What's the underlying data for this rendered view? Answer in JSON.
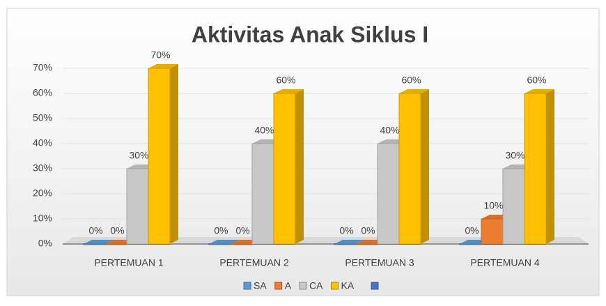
{
  "chart_data": {
    "type": "bar3d",
    "title": "Aktivitas Anak Siklus I",
    "categories": [
      "PERTEMUAN 1",
      "PERTEMUAN 2",
      "PERTEMUAN 3",
      "PERTEMUAN 4"
    ],
    "series": [
      {
        "name": "SA",
        "color": "#5b9bd5",
        "values": [
          0,
          0,
          0,
          0
        ],
        "value_labels": [
          "0%",
          "0%",
          "0%",
          "0%"
        ]
      },
      {
        "name": "A",
        "color": "#ed7d31",
        "values": [
          0,
          0,
          0,
          10
        ],
        "value_labels": [
          "0%",
          "0%",
          "0%",
          "10%"
        ]
      },
      {
        "name": "CA",
        "color": "#c8c8c8",
        "values": [
          30,
          40,
          40,
          30
        ],
        "value_labels": [
          "30%",
          "40%",
          "40%",
          "30%"
        ]
      },
      {
        "name": "KA",
        "color": "#ffc000",
        "values": [
          70,
          60,
          60,
          60
        ],
        "value_labels": [
          "70%",
          "60%",
          "60%",
          "60%"
        ]
      }
    ],
    "ylim": [
      0,
      70
    ],
    "yticks": [
      {
        "value": 0,
        "label": "0%"
      },
      {
        "value": 10,
        "label": "10%"
      },
      {
        "value": 20,
        "label": "20%"
      },
      {
        "value": 30,
        "label": "30%"
      },
      {
        "value": 40,
        "label": "40%"
      },
      {
        "value": 50,
        "label": "50%"
      },
      {
        "value": 60,
        "label": "60%"
      },
      {
        "value": 70,
        "label": "70%"
      }
    ],
    "grid": true,
    "legend": "bottom"
  }
}
